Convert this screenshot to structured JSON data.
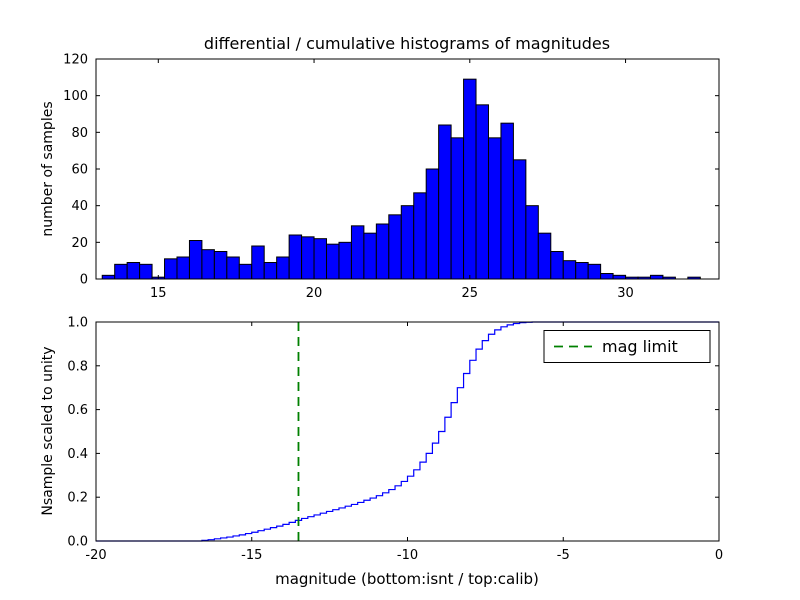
{
  "figure": {
    "title": "differential / cumulative histograms of magnitudes",
    "background": "#ffffff"
  },
  "top_plot": {
    "ylabel": "number of samples",
    "xticks": [
      15,
      20,
      25,
      30
    ],
    "yticks": [
      0,
      20,
      40,
      60,
      80,
      100,
      120
    ],
    "xlim": [
      13,
      33
    ],
    "ylim": [
      0,
      120
    ]
  },
  "bottom_plot": {
    "ylabel": "Nsample scaled to unity",
    "xlabel": "magnitude (bottom:isnt / top:calib)",
    "xticks": [
      -20,
      -15,
      -10,
      -5,
      0
    ],
    "yticks": [
      "0.0",
      "0.2",
      "0.4",
      "0.6",
      "0.8",
      "1.0"
    ],
    "xlim": [
      -20,
      0
    ],
    "ylim": [
      0,
      1
    ]
  },
  "legend": {
    "label": "mag limit",
    "position": "upper right"
  },
  "colors": {
    "hist_fill": "#0000ff",
    "hist_edge": "#000000",
    "cumulative_line": "#0000ff",
    "mag_limit_line": "#008000",
    "axis": "#000000",
    "background": "#ffffff"
  },
  "chart_data": [
    {
      "type": "bar",
      "subtype": "histogram",
      "title": "differential / cumulative histograms of magnitudes",
      "xlabel": "",
      "ylabel": "number of samples",
      "xlim": [
        13,
        33
      ],
      "ylim": [
        0,
        120
      ],
      "grid": false,
      "bin_start": 13.2,
      "bin_width": 0.4,
      "values": [
        2,
        8,
        9,
        8,
        1,
        11,
        12,
        21,
        16,
        15,
        12,
        8,
        18,
        9,
        12,
        24,
        23,
        22,
        19,
        20,
        29,
        25,
        30,
        35,
        40,
        47,
        60,
        84,
        77,
        109,
        95,
        77,
        85,
        65,
        40,
        25,
        15,
        10,
        9,
        8,
        3,
        2,
        1,
        1,
        2,
        1,
        0,
        1
      ]
    },
    {
      "type": "line",
      "subtype": "cumulative-step",
      "title": "",
      "xlabel": "magnitude (bottom:isnt / top:calib)",
      "ylabel": "Nsample scaled to unity",
      "xlim": [
        -20,
        0
      ],
      "ylim": [
        0,
        1
      ],
      "grid": false,
      "legend_position": "upper right",
      "legend_entries": [
        "mag limit"
      ],
      "mag_limit_x": -13.5,
      "points": [
        [
          -16.6,
          0.003
        ],
        [
          -16.4,
          0.006
        ],
        [
          -16.2,
          0.01
        ],
        [
          -16.0,
          0.014
        ],
        [
          -15.8,
          0.018
        ],
        [
          -15.6,
          0.023
        ],
        [
          -15.4,
          0.028
        ],
        [
          -15.2,
          0.034
        ],
        [
          -15.0,
          0.04
        ],
        [
          -14.8,
          0.047
        ],
        [
          -14.6,
          0.054
        ],
        [
          -14.4,
          0.061
        ],
        [
          -14.2,
          0.068
        ],
        [
          -14.0,
          0.076
        ],
        [
          -13.8,
          0.085
        ],
        [
          -13.6,
          0.094
        ],
        [
          -13.4,
          0.103
        ],
        [
          -13.2,
          0.111
        ],
        [
          -13.0,
          0.119
        ],
        [
          -12.8,
          0.127
        ],
        [
          -12.6,
          0.135
        ],
        [
          -12.4,
          0.143
        ],
        [
          -12.2,
          0.151
        ],
        [
          -12.0,
          0.159
        ],
        [
          -11.8,
          0.167
        ],
        [
          -11.6,
          0.176
        ],
        [
          -11.4,
          0.186
        ],
        [
          -11.2,
          0.196
        ],
        [
          -11.0,
          0.207
        ],
        [
          -10.8,
          0.22
        ],
        [
          -10.6,
          0.235
        ],
        [
          -10.4,
          0.252
        ],
        [
          -10.2,
          0.272
        ],
        [
          -10.0,
          0.296
        ],
        [
          -9.8,
          0.325
        ],
        [
          -9.6,
          0.36
        ],
        [
          -9.4,
          0.4
        ],
        [
          -9.2,
          0.447
        ],
        [
          -9.0,
          0.5
        ],
        [
          -8.8,
          0.565
        ],
        [
          -8.6,
          0.632
        ],
        [
          -8.4,
          0.7
        ],
        [
          -8.2,
          0.765
        ],
        [
          -8.0,
          0.825
        ],
        [
          -7.8,
          0.876
        ],
        [
          -7.6,
          0.915
        ],
        [
          -7.4,
          0.944
        ],
        [
          -7.2,
          0.964
        ],
        [
          -7.0,
          0.978
        ],
        [
          -6.8,
          0.987
        ],
        [
          -6.6,
          0.993
        ],
        [
          -6.4,
          0.997
        ],
        [
          -6.2,
          0.999
        ],
        [
          -6.0,
          1.0
        ]
      ]
    }
  ]
}
